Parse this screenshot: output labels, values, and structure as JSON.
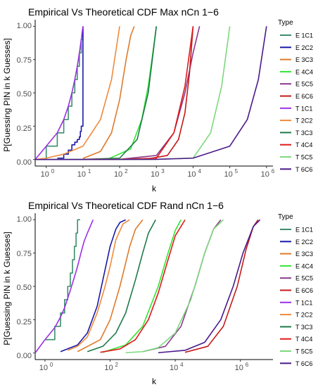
{
  "chart_data": [
    {
      "type": "line",
      "title": "Empirical Vs Theoretical CDF Max nCn 1−6",
      "xlabel": "k",
      "ylabel": "P[Guessing PIN in k Guesses]",
      "x_scale": "log10",
      "xlim": [
        0.5,
        1500000
      ],
      "ylim": [
        0,
        1
      ],
      "x_ticks": [
        {
          "value": 1,
          "label": "10",
          "exp": "0"
        },
        {
          "value": 10,
          "label": "10",
          "exp": "1"
        },
        {
          "value": 100,
          "label": "10",
          "exp": "2"
        },
        {
          "value": 1000,
          "label": "10",
          "exp": "3"
        },
        {
          "value": 10000,
          "label": "10",
          "exp": "4"
        },
        {
          "value": 100000,
          "label": "10",
          "exp": "5"
        },
        {
          "value": 1000000,
          "label": "10",
          "exp": "6"
        }
      ],
      "y_ticks": [
        0,
        0.25,
        0.5,
        0.75,
        1
      ],
      "y_tick_labels": [
        "0.00",
        "0.25",
        "0.50",
        "0.75",
        "1.00"
      ],
      "grid": false,
      "legend": {
        "title": "Type",
        "position": "right"
      },
      "series": [
        {
          "name": "E 1C1",
          "color": "#3b8f6b",
          "style": "step",
          "x": [
            0.5,
            1,
            2,
            3,
            4,
            5,
            6,
            7,
            8,
            9,
            10
          ],
          "y": [
            0,
            0.1,
            0.2,
            0.3,
            0.4,
            0.5,
            0.6,
            0.7,
            0.8,
            0.9,
            1
          ]
        },
        {
          "name": "E 2C2",
          "color": "#1a1aa8",
          "style": "step",
          "x": [
            2,
            3,
            4,
            5,
            6,
            7,
            8,
            8.5,
            9,
            10
          ],
          "y": [
            0.01,
            0.04,
            0.07,
            0.11,
            0.13,
            0.15,
            0.17,
            0.21,
            0.25,
            1
          ]
        },
        {
          "name": "E 3C3",
          "color": "#e07a2a",
          "style": "line",
          "x": [
            10,
            30,
            60,
            100,
            150,
            200,
            250
          ],
          "y": [
            0.008,
            0.06,
            0.2,
            0.45,
            0.75,
            0.93,
            1
          ]
        },
        {
          "name": "E 4C4",
          "color": "#33e533",
          "style": "line",
          "x": [
            50,
            200,
            400,
            600,
            800,
            1000
          ],
          "y": [
            0.005,
            0.08,
            0.3,
            0.55,
            0.8,
            1
          ]
        },
        {
          "name": "E 5C5",
          "color": "#8b3a8b",
          "style": "line",
          "x": [
            100,
            1000,
            3000,
            6000,
            10000,
            15000
          ],
          "y": [
            0.001,
            0.03,
            0.2,
            0.5,
            0.8,
            1
          ]
        },
        {
          "name": "E 6C6",
          "color": "#c41a1a",
          "style": "line",
          "x": [
            500,
            2000,
            4000,
            6000,
            8000,
            10000
          ],
          "y": [
            0.001,
            0.03,
            0.15,
            0.35,
            0.65,
            1
          ]
        },
        {
          "name": "T 1C1",
          "color": "#9b30e6",
          "style": "line",
          "x": [
            0.5,
            1,
            2,
            3,
            4,
            5,
            6,
            7,
            8,
            9,
            10
          ],
          "y": [
            0,
            0.1,
            0.2,
            0.3,
            0.4,
            0.5,
            0.6,
            0.7,
            0.8,
            0.9,
            1
          ]
        },
        {
          "name": "T 2C2",
          "color": "#f08a3a",
          "style": "line",
          "x": [
            0.5,
            1,
            3,
            10,
            30,
            60,
            100
          ],
          "y": [
            0,
            0.01,
            0.04,
            0.1,
            0.3,
            0.6,
            1
          ]
        },
        {
          "name": "T 3C3",
          "color": "#1e7a4a",
          "style": "line",
          "x": [
            1,
            10,
            100,
            300,
            600,
            1000
          ],
          "y": [
            0,
            0.001,
            0.01,
            0.15,
            0.5,
            1
          ]
        },
        {
          "name": "T 4C4",
          "color": "#e01a1a",
          "style": "line",
          "x": [
            10,
            100,
            1000,
            3000,
            6000,
            10000
          ],
          "y": [
            0,
            0.001,
            0.01,
            0.2,
            0.55,
            1
          ]
        },
        {
          "name": "T 5C5",
          "color": "#7ed87e",
          "style": "line",
          "x": [
            100,
            1000,
            10000,
            30000,
            60000,
            100000
          ],
          "y": [
            0,
            0.001,
            0.01,
            0.2,
            0.55,
            1
          ]
        },
        {
          "name": "T 6C6",
          "color": "#4a1a8a",
          "style": "line",
          "x": [
            0.5,
            10,
            100,
            1000,
            10000,
            100000,
            300000,
            600000,
            1000000
          ],
          "y": [
            0,
            0,
            0.0001,
            0.001,
            0.01,
            0.1,
            0.3,
            0.6,
            1
          ]
        }
      ]
    },
    {
      "type": "line",
      "title": "Empirical Vs Theoretical CDF Rand nCn 1−6",
      "xlabel": "k",
      "ylabel": "P[Guessing PIN in k Guesses]",
      "x_scale": "log10",
      "xlim": [
        0.5,
        10000000
      ],
      "ylim": [
        0,
        1
      ],
      "x_ticks": [
        {
          "value": 1,
          "label": "10",
          "exp": "0"
        },
        {
          "value": 100,
          "label": "10",
          "exp": "2"
        },
        {
          "value": 10000,
          "label": "10",
          "exp": "4"
        },
        {
          "value": 1000000,
          "label": "10",
          "exp": "6"
        }
      ],
      "y_ticks": [
        0,
        0.25,
        0.5,
        0.75,
        1
      ],
      "y_tick_labels": [
        "0.00",
        "0.25",
        "0.50",
        "0.75",
        "1.00"
      ],
      "grid": false,
      "legend": {
        "title": "Type",
        "position": "right"
      },
      "series": [
        {
          "name": "E 1C1",
          "color": "#3b8f6b",
          "style": "step",
          "x": [
            1,
            2,
            3,
            4,
            5,
            6,
            7,
            8,
            9,
            10,
            12
          ],
          "y": [
            0.1,
            0.2,
            0.3,
            0.4,
            0.5,
            0.6,
            0.7,
            0.8,
            0.9,
            1,
            1
          ]
        },
        {
          "name": "E 2C2",
          "color": "#1a1aa8",
          "style": "line",
          "x": [
            3,
            10,
            20,
            40,
            60,
            100,
            150,
            200,
            300
          ],
          "y": [
            0.01,
            0.06,
            0.15,
            0.35,
            0.55,
            0.8,
            0.93,
            0.98,
            1
          ]
        },
        {
          "name": "E 3C3",
          "color": "#e07a2a",
          "style": "line",
          "x": [
            10,
            50,
            100,
            200,
            400,
            600,
            1000
          ],
          "y": [
            0.01,
            0.1,
            0.25,
            0.5,
            0.8,
            0.93,
            1
          ]
        },
        {
          "name": "E 4C4",
          "color": "#33e533",
          "style": "line",
          "x": [
            60,
            300,
            1000,
            3000,
            6000,
            10000,
            15000
          ],
          "y": [
            0.005,
            0.06,
            0.2,
            0.5,
            0.75,
            0.92,
            1
          ]
        },
        {
          "name": "E 5C5",
          "color": "#8b3a8b",
          "style": "line",
          "x": [
            1000,
            5000,
            15000,
            40000,
            80000,
            150000,
            250000
          ],
          "y": [
            0.01,
            0.05,
            0.2,
            0.5,
            0.75,
            0.93,
            1
          ]
        },
        {
          "name": "E 6C6",
          "color": "#c41a1a",
          "style": "line",
          "x": [
            20000,
            100000,
            300000,
            800000,
            1500000,
            2500000,
            3500000
          ],
          "y": [
            0.005,
            0.05,
            0.2,
            0.5,
            0.78,
            0.95,
            1
          ]
        },
        {
          "name": "T 1C1",
          "color": "#9b30e6",
          "style": "line",
          "x": [
            0.5,
            1,
            2,
            3,
            4,
            6,
            8,
            10,
            13,
            16,
            20,
            30
          ],
          "y": [
            0,
            0.1,
            0.19,
            0.27,
            0.34,
            0.47,
            0.57,
            0.65,
            0.76,
            0.84,
            0.9,
            1
          ]
        },
        {
          "name": "T 2C2",
          "color": "#f08a3a",
          "style": "line",
          "x": [
            5,
            10,
            20,
            40,
            70,
            100,
            150,
            250,
            400
          ],
          "y": [
            0.02,
            0.05,
            0.12,
            0.3,
            0.5,
            0.65,
            0.85,
            0.97,
            1
          ]
        },
        {
          "name": "T 3C3",
          "color": "#1e7a4a",
          "style": "line",
          "x": [
            20,
            60,
            150,
            300,
            600,
            1000,
            1500,
            2500
          ],
          "y": [
            0.01,
            0.05,
            0.15,
            0.3,
            0.55,
            0.75,
            0.9,
            1
          ]
        },
        {
          "name": "T 4C4",
          "color": "#e01a1a",
          "style": "line",
          "x": [
            50,
            200,
            600,
            1500,
            3000,
            6000,
            10000,
            20000
          ],
          "y": [
            0.005,
            0.03,
            0.1,
            0.25,
            0.45,
            0.7,
            0.88,
            1
          ]
        },
        {
          "name": "T 5C5",
          "color": "#7ed87e",
          "style": "line",
          "x": [
            300,
            1000,
            3000,
            10000,
            30000,
            80000,
            150000,
            300000
          ],
          "y": [
            0.002,
            0.01,
            0.04,
            0.15,
            0.4,
            0.75,
            0.93,
            1
          ]
        },
        {
          "name": "T 6C6",
          "color": "#4a1a8a",
          "style": "line",
          "x": [
            3000,
            20000,
            80000,
            250000,
            600000,
            1200000,
            2500000,
            4000000
          ],
          "y": [
            0.002,
            0.02,
            0.08,
            0.25,
            0.5,
            0.75,
            0.95,
            1
          ]
        }
      ]
    }
  ]
}
